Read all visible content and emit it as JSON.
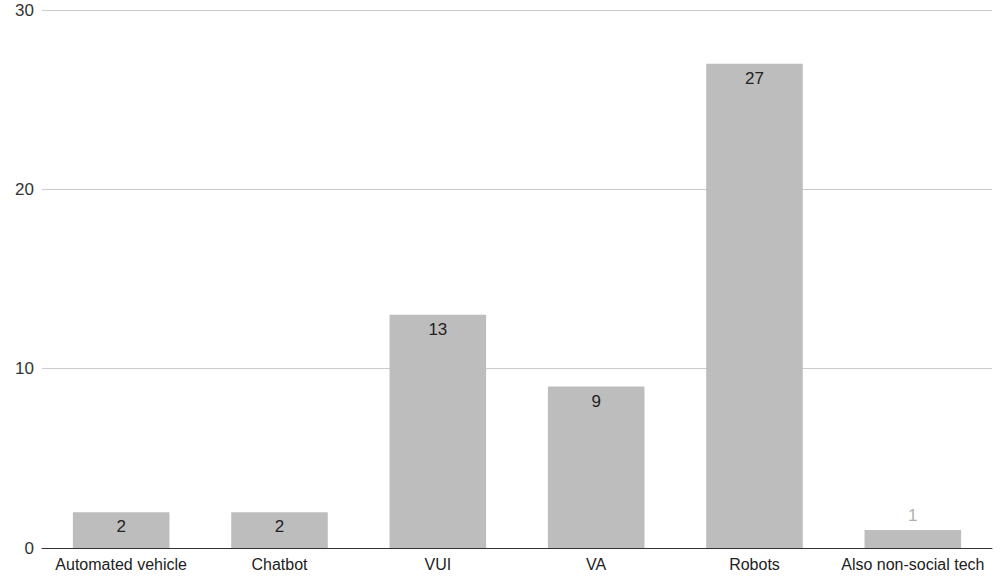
{
  "chart_data": {
    "type": "bar",
    "categories": [
      "Automated vehicle",
      "Chatbot",
      "VUI",
      "VA",
      "Robots",
      "Also non-social tech"
    ],
    "values": [
      2,
      2,
      13,
      9,
      27,
      1
    ],
    "color": "#bdbdbd",
    "ylim": [
      0,
      30
    ],
    "yticks": [
      0,
      10,
      20,
      30
    ],
    "grid": true,
    "data_labels": true
  }
}
